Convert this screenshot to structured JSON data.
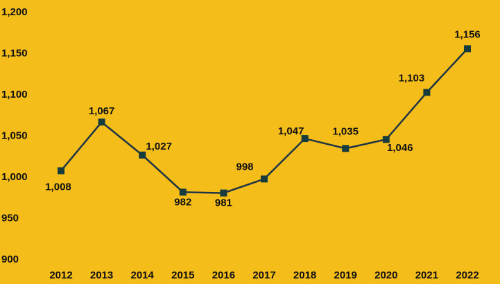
{
  "chart_data": {
    "type": "line",
    "categories": [
      "2012",
      "2013",
      "2014",
      "2015",
      "2016",
      "2017",
      "2018",
      "2019",
      "2020",
      "2021",
      "2022"
    ],
    "values": [
      1008,
      1067,
      1027,
      982,
      981,
      998,
      1047,
      1035,
      1046,
      1103,
      1156
    ],
    "value_labels": [
      "1,008",
      "1,067",
      "1,027",
      "982",
      "981",
      "998",
      "1,047",
      "1,035",
      "1,046",
      "1,103",
      "1,156"
    ],
    "color": "#1d3445",
    "marker_color": "#173c3c",
    "background": "#f5bd19",
    "ylim": [
      900,
      1200
    ],
    "yticks": [
      900,
      950,
      {
        "value": 1000,
        "label": "1,000"
      },
      {
        "value": 1050,
        "label": "1,050"
      },
      {
        "value": 1100,
        "label": "1,100"
      },
      {
        "value": 1150,
        "label": "1,150"
      },
      {
        "value": 1200,
        "label": "1,200"
      }
    ],
    "grid": false
  }
}
